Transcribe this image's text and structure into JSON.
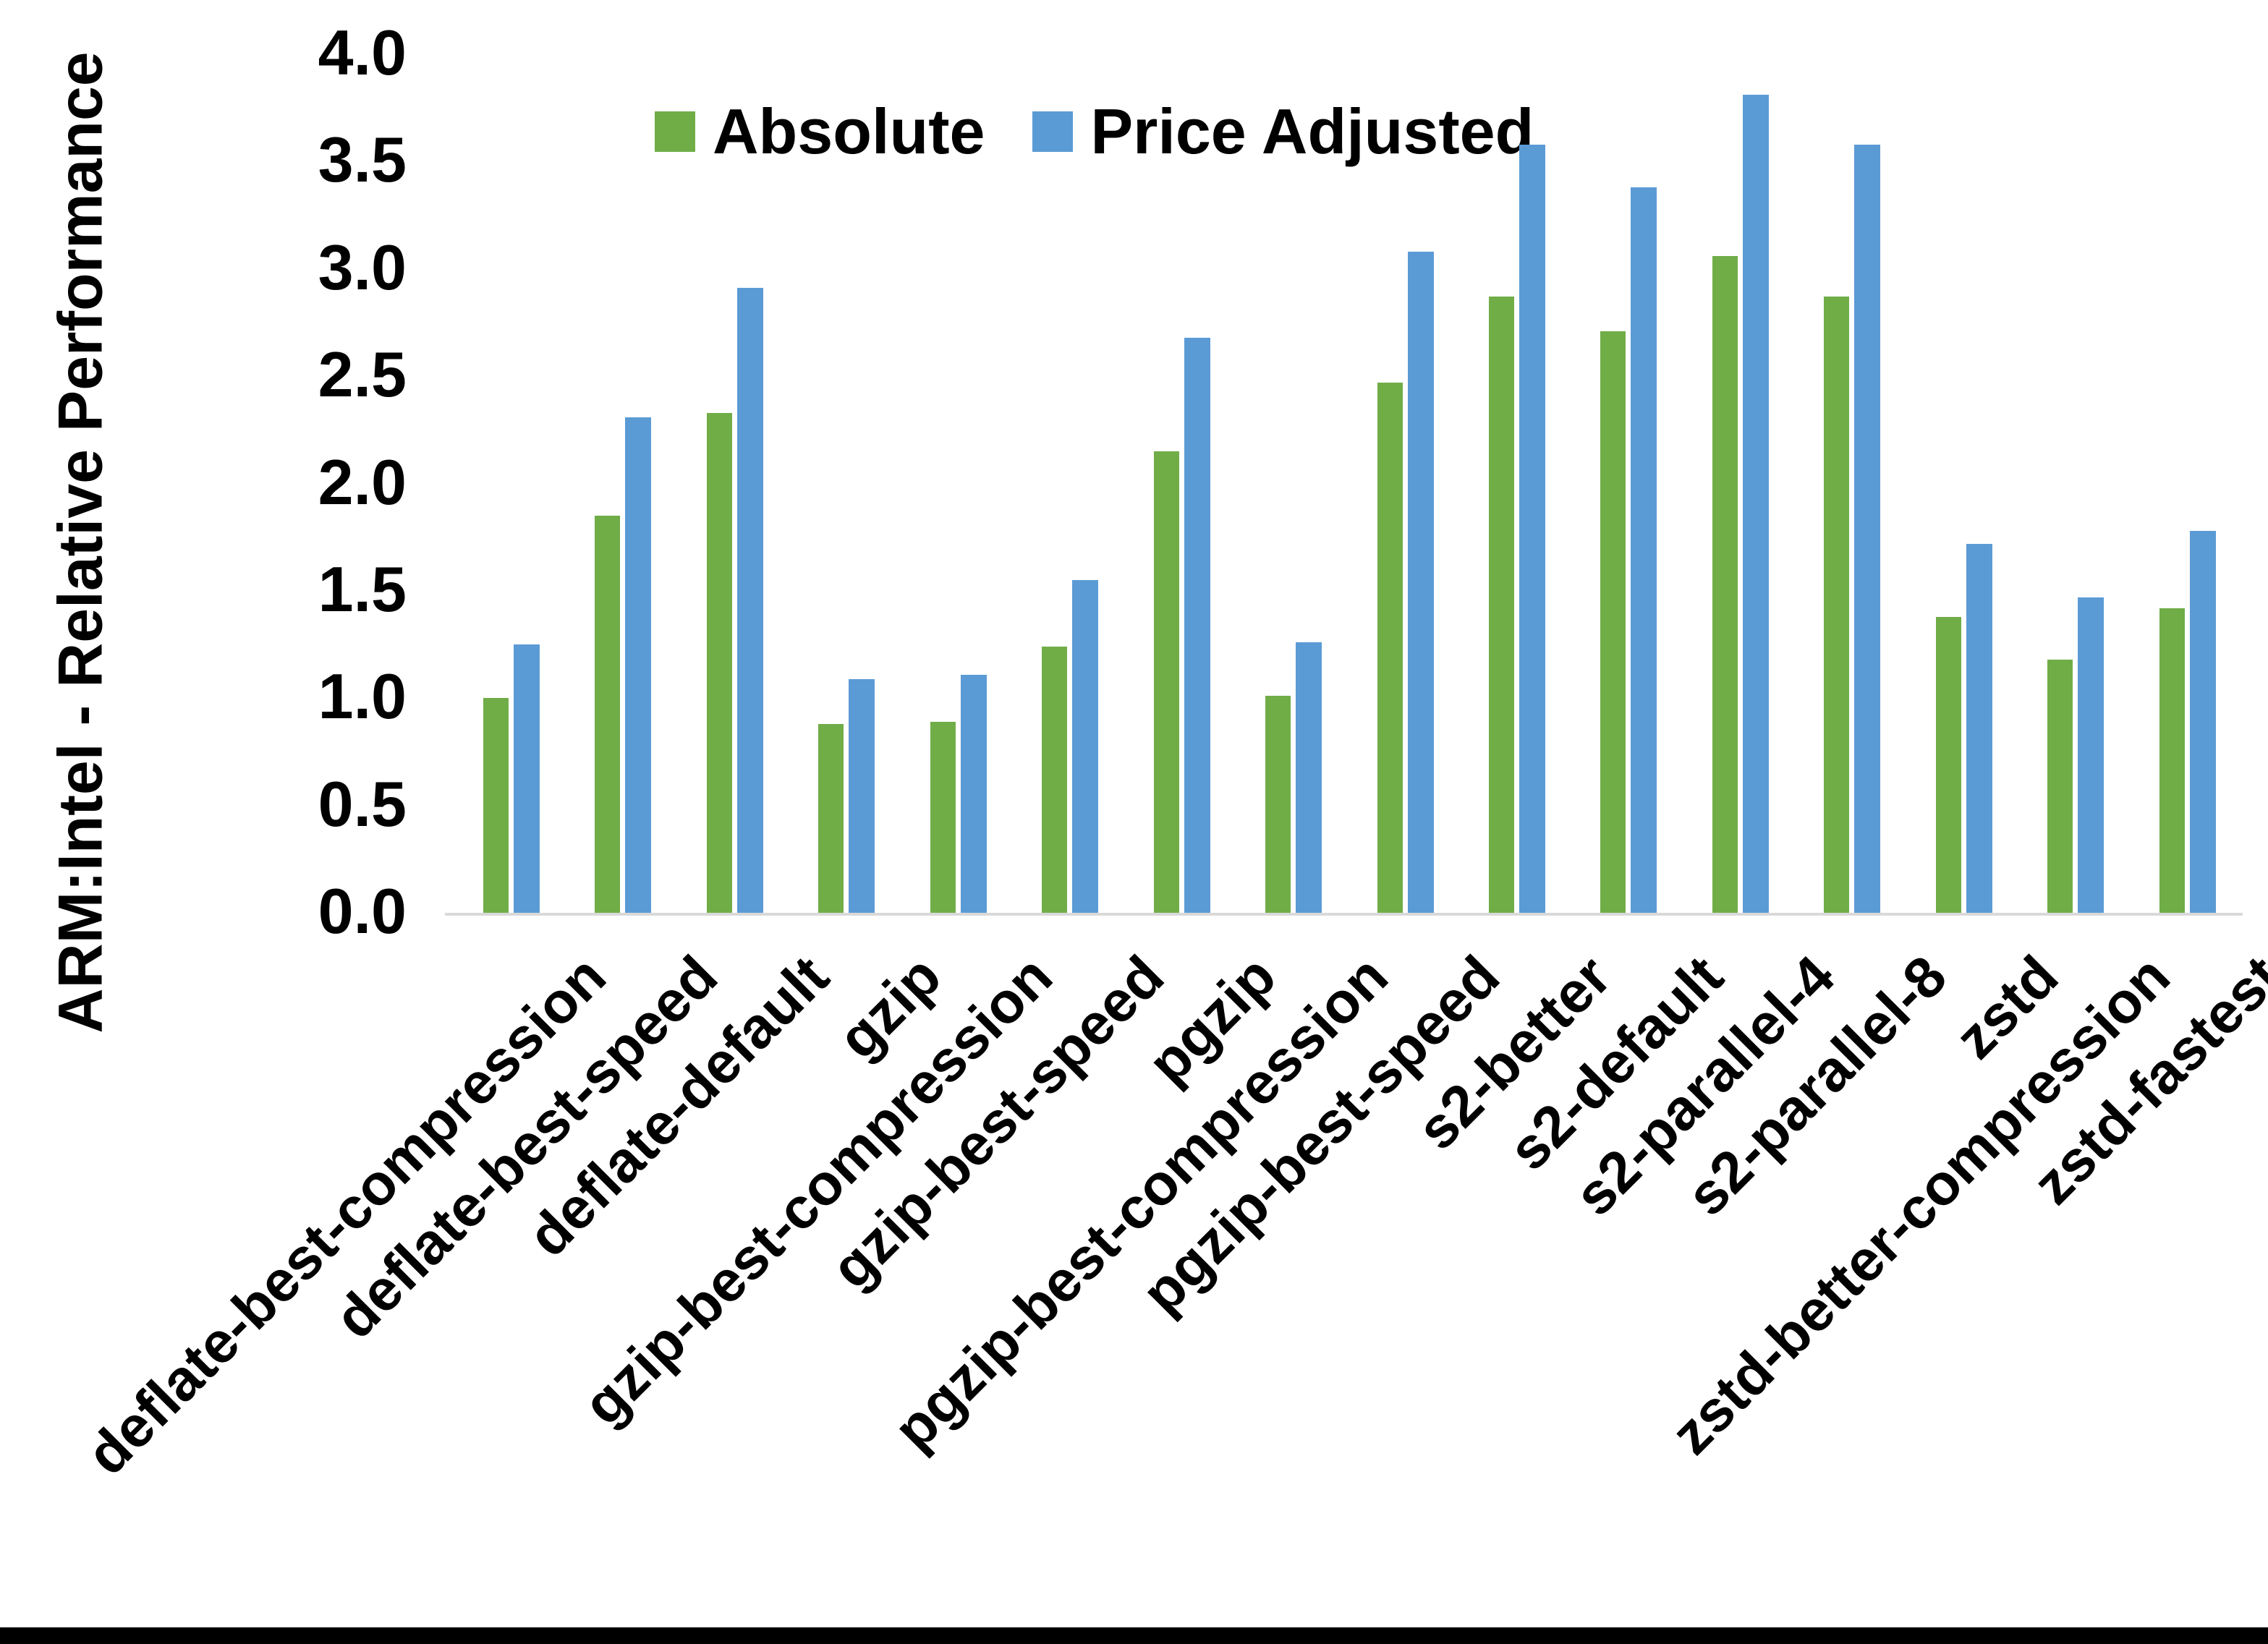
{
  "chart_data": {
    "type": "bar",
    "title": "",
    "xlabel": "",
    "ylabel": "ARM:Intel - Relative Performance",
    "ylim": [
      0.0,
      4.0
    ],
    "ytick_step": 0.5,
    "ytick_labels": [
      "0.0",
      "0.5",
      "1.0",
      "1.5",
      "2.0",
      "2.5",
      "3.0",
      "3.5",
      "4.0"
    ],
    "grid": false,
    "legend_position": "top-center",
    "background_color": "#ffffff",
    "axis_line_color": "#d9d9d9",
    "text_color": "#000000",
    "categories": [
      "deflate-best-compression",
      "deflate-best-speed",
      "deflate-default",
      "gzip",
      "gzip-best-compression",
      "gzip-best-speed",
      "pgzip",
      "pgzip-best-compression",
      "pgzip-best-speed",
      "s2-better",
      "s2-default",
      "s2-parallel-4",
      "s2-parallel-8",
      "zstd",
      "zstd-better-compression",
      "zstd-fastest"
    ],
    "series": [
      {
        "name": "Absolute",
        "color": "#70AD47",
        "values": [
          1.0,
          1.85,
          2.33,
          0.88,
          0.89,
          1.24,
          2.15,
          1.01,
          2.47,
          2.87,
          2.71,
          3.06,
          2.87,
          1.38,
          1.18,
          1.42
        ]
      },
      {
        "name": "Price Adjusted",
        "color": "#5B9BD5",
        "values": [
          1.25,
          2.31,
          2.91,
          1.09,
          1.11,
          1.55,
          2.68,
          1.26,
          3.08,
          3.58,
          3.38,
          3.81,
          3.58,
          1.72,
          1.47,
          1.78
        ]
      }
    ]
  }
}
